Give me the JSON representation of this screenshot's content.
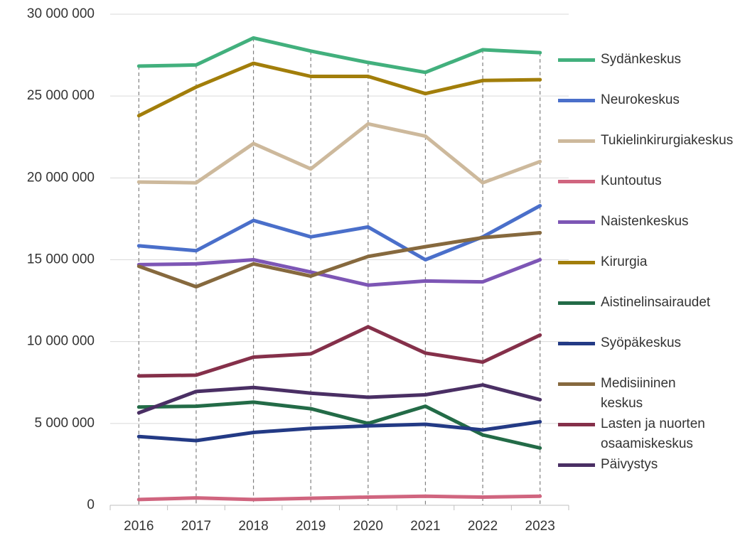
{
  "chart_data": {
    "type": "line",
    "categories": [
      "2016",
      "2017",
      "2018",
      "2019",
      "2020",
      "2021",
      "2022",
      "2023"
    ],
    "ylim": [
      0,
      30000000
    ],
    "yticks": [
      0,
      {
        "value": 5000000,
        "label": "5 000 000"
      },
      {
        "value": 10000000,
        "label": "10 000 000"
      },
      {
        "value": 15000000,
        "label": "15 000 000"
      },
      {
        "value": 20000000,
        "label": "20 000 000"
      },
      {
        "value": 25000000,
        "label": "25 000 000"
      },
      {
        "value": 30000000,
        "label": "30 000 000"
      }
    ],
    "grid": true,
    "legend": "right",
    "drop_lines": true,
    "series": [
      {
        "name": "Sydänkeskus",
        "color": "#42b07d",
        "values": [
          26830000,
          26900000,
          28550000,
          27750000,
          27050000,
          26450000,
          27830000,
          27650000
        ]
      },
      {
        "name": "Neurokeskus",
        "color": "#4a6fca",
        "values": [
          15850000,
          15550000,
          17400000,
          16400000,
          17000000,
          15000000,
          16400000,
          18300000
        ]
      },
      {
        "name": "Tukielinkirurgiakeskus",
        "color": "#cdb99c",
        "values": [
          19750000,
          19700000,
          22100000,
          20550000,
          23300000,
          22550000,
          19700000,
          21000000
        ]
      },
      {
        "name": "Kuntoutus",
        "color": "#d0657f",
        "values": [
          350000,
          450000,
          350000,
          430000,
          500000,
          550000,
          500000,
          550000
        ]
      },
      {
        "name": "Naistenkeskus",
        "color": "#7d56b5",
        "values": [
          14700000,
          14750000,
          15000000,
          14250000,
          13450000,
          13700000,
          13650000,
          15000000
        ]
      },
      {
        "name": "Kirurgia",
        "color": "#a27e0a",
        "values": [
          23800000,
          25550000,
          27000000,
          26200000,
          26200000,
          25150000,
          25950000,
          26000000
        ]
      },
      {
        "name": "Aistinelinsairaudet",
        "color": "#236b47",
        "values": [
          6000000,
          6050000,
          6300000,
          5900000,
          5000000,
          6050000,
          4300000,
          3500000
        ]
      },
      {
        "name": "Syöpäkeskus",
        "color": "#233a85",
        "values": [
          4200000,
          3950000,
          4450000,
          4700000,
          4850000,
          4950000,
          4600000,
          5100000
        ]
      },
      {
        "name": "Medisiininen keskus",
        "color": "#86693e",
        "values": [
          14600000,
          13350000,
          14750000,
          14000000,
          15200000,
          15800000,
          16350000,
          16650000
        ]
      },
      {
        "name": "Lasten ja nuorten osaamiskeskus",
        "color": "#85304a",
        "values": [
          7900000,
          7950000,
          9050000,
          9250000,
          10900000,
          9300000,
          8750000,
          10400000
        ]
      },
      {
        "name": "Päivystys",
        "color": "#4a2f64",
        "values": [
          5650000,
          6950000,
          7200000,
          6850000,
          6600000,
          6750000,
          7350000,
          6450000
        ]
      }
    ]
  }
}
